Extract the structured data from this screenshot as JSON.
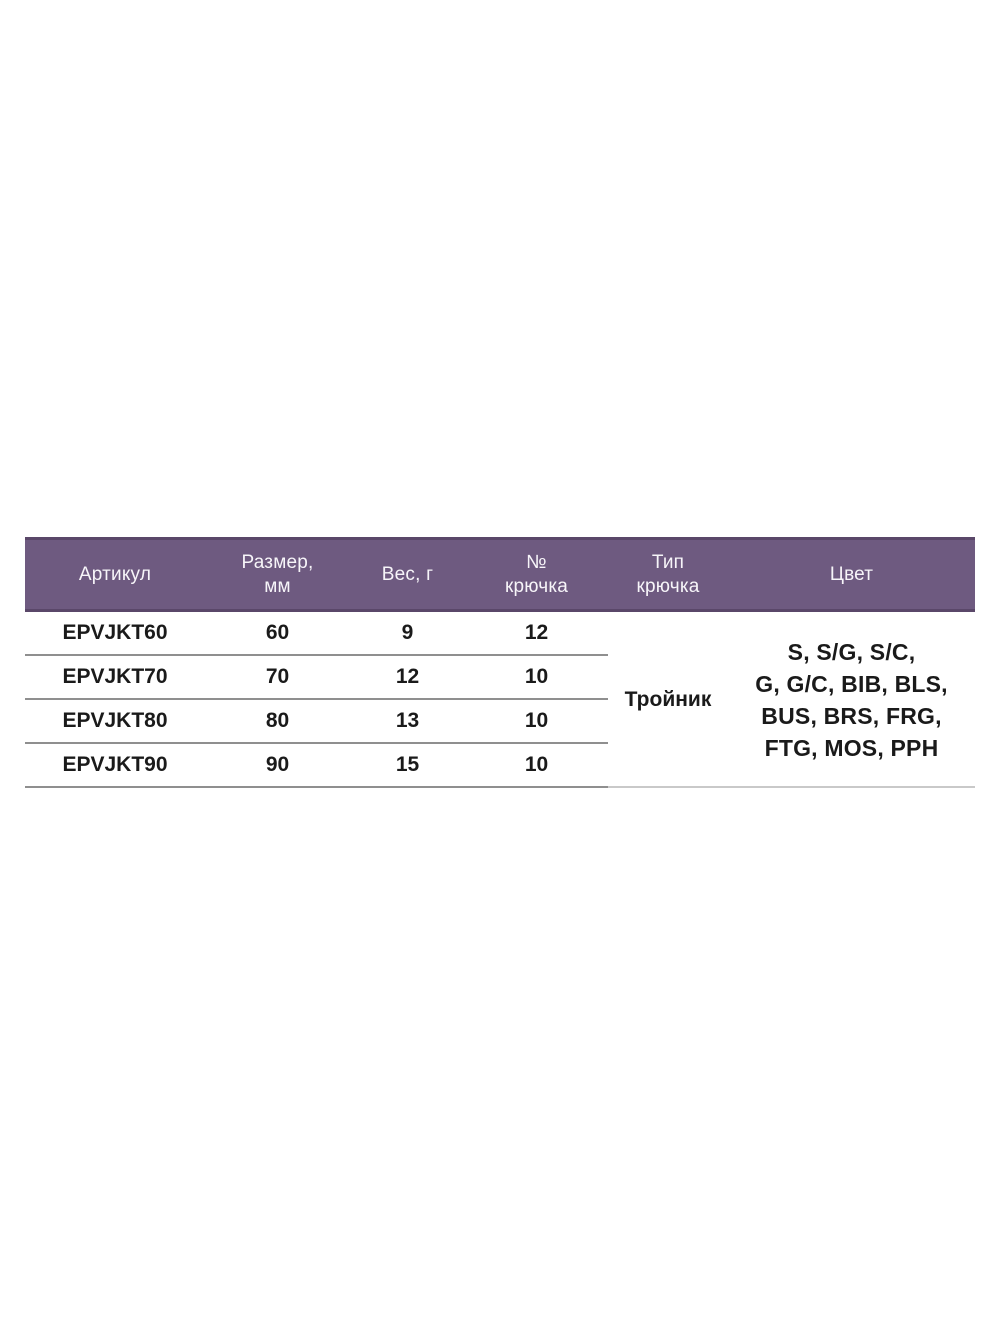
{
  "table": {
    "headers": {
      "article": "Артикул",
      "size": "Размер,\nмм",
      "weight": "Вес, г",
      "hook_no": "№\nкрючка",
      "hook_type": "Тип\nкрючка",
      "color": "Цвет"
    },
    "rows": [
      {
        "article": "EPVJKT60",
        "size": "60",
        "weight": "9",
        "hook_no": "12"
      },
      {
        "article": "EPVJKT70",
        "size": "70",
        "weight": "12",
        "hook_no": "10"
      },
      {
        "article": "EPVJKT80",
        "size": "80",
        "weight": "13",
        "hook_no": "10"
      },
      {
        "article": "EPVJKT90",
        "size": "90",
        "weight": "15",
        "hook_no": "10"
      }
    ],
    "merged": {
      "hook_type": "Тройник",
      "colors": [
        "S, S/G, S/C,",
        "G, G/C, BIB, BLS,",
        "BUS, BRS, FRG,",
        "FTG, MOS, PPH"
      ]
    },
    "colors": {
      "header_bg": "#6e5a80",
      "header_border": "#5a4769",
      "header_text": "#f7f5f9",
      "divider": "#8f8f8f",
      "bottom_line_right": "#c9c9c9",
      "body_text": "#1a1a1a",
      "page_bg": "#ffffff"
    }
  }
}
